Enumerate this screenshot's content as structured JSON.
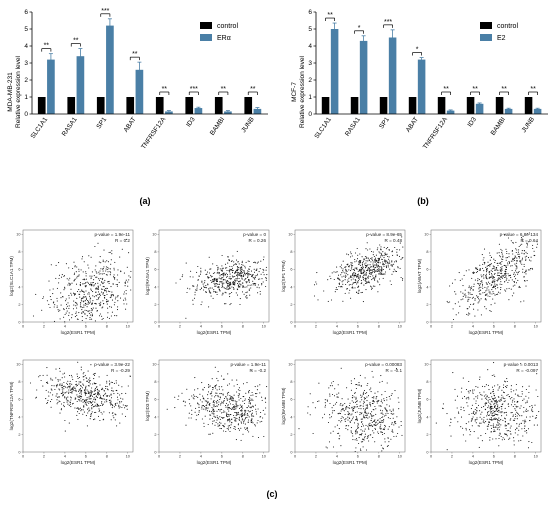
{
  "colors": {
    "control": "#000000",
    "treated": "#4a7fa6"
  },
  "panel_labels": {
    "a": "(a)",
    "b": "(b)",
    "c": "(c)"
  },
  "chart_data": [
    {
      "type": "bar",
      "panel": "a",
      "ylabel_line1": "MDA-MB-231",
      "ylabel_line2": "Relative expression level",
      "ylim": [
        0,
        6
      ],
      "yticks": [
        "0",
        "1",
        "2",
        "3",
        "4",
        "5",
        "6"
      ],
      "categories": [
        "SLC1A1",
        "RASA1",
        "SP1",
        "ABAT",
        "TNFRSF12A",
        "ID3",
        "BAMBI",
        "JUNB"
      ],
      "legend_position": "top-right",
      "series": [
        {
          "name": "control",
          "values": [
            1,
            1,
            1,
            1,
            1,
            1,
            1,
            1
          ],
          "errors": [
            0,
            0,
            0,
            0,
            0,
            0,
            0,
            0
          ]
        },
        {
          "name": "ERα",
          "values": [
            3.2,
            3.4,
            5.2,
            2.6,
            0.15,
            0.35,
            0.15,
            0.3
          ],
          "errors": [
            0.35,
            0.45,
            0.4,
            0.45,
            0.05,
            0.05,
            0.05,
            0.08
          ]
        }
      ],
      "significance": [
        "**",
        "**",
        "***",
        "**",
        "**",
        "***",
        "**",
        "**"
      ]
    },
    {
      "type": "bar",
      "panel": "b",
      "ylabel_line1": "MCF-7",
      "ylabel_line2": "Relative expression level",
      "ylim": [
        0,
        6
      ],
      "yticks": [
        "0",
        "1",
        "2",
        "3",
        "4",
        "5",
        "6"
      ],
      "categories": [
        "SLC1A1",
        "RASA1",
        "SP1",
        "ABAT",
        "TNFRSF12A",
        "ID3",
        "BAMBI",
        "JUNB"
      ],
      "legend_position": "top-right",
      "series": [
        {
          "name": "control",
          "values": [
            1,
            1,
            1,
            1,
            1,
            1,
            1,
            1
          ],
          "errors": [
            0,
            0,
            0,
            0,
            0,
            0,
            0,
            0
          ]
        },
        {
          "name": "E2",
          "values": [
            5.0,
            4.3,
            4.5,
            3.2,
            0.2,
            0.6,
            0.3,
            0.3
          ],
          "errors": [
            0.35,
            0.3,
            0.45,
            0.12,
            0.04,
            0.05,
            0.04,
            0.04
          ]
        }
      ],
      "significance": [
        "**",
        "*",
        "***",
        "*",
        "**",
        "**",
        "**",
        "**"
      ]
    },
    {
      "type": "scatter",
      "panel": "c",
      "xlabel": "log2(ESR1 TPM)",
      "xticks": [
        "0",
        "2",
        "4",
        "6",
        "8",
        "10"
      ],
      "yticks": [
        "0",
        "2",
        "4",
        "6",
        "8",
        "10"
      ],
      "subplots": [
        {
          "ylabel": "log2(SLC1A1 TPM)",
          "pvalue": "p-value = 1.9e-11",
          "r": "R = 0.2",
          "cx": 6.5,
          "cy": 3.5,
          "sx": 2.0,
          "sy": 2.0,
          "rho": 0.2
        },
        {
          "ylabel": "log2(RASA1 TPM)",
          "pvalue": "p-value = 0",
          "r": "R = 0.26",
          "cx": 7.0,
          "cy": 5.0,
          "sx": 1.8,
          "sy": 1.1,
          "rho": 0.3
        },
        {
          "ylabel": "log2(SP1 TPM)",
          "pvalue": "p-value = 8.9e-65",
          "r": "R = 0.48",
          "cx": 7.0,
          "cy": 6.0,
          "sx": 1.8,
          "sy": 1.3,
          "rho": 0.5
        },
        {
          "ylabel": "log2(ABAT TPM)",
          "pvalue": "p-value = 6.8e-134",
          "r": "R = 0.64",
          "cx": 6.5,
          "cy": 5.5,
          "sx": 2.0,
          "sy": 2.0,
          "rho": 0.65
        },
        {
          "ylabel": "log2(TNFRSF12A TPM)",
          "pvalue": "p-value = 3.9e-22",
          "r": "R = -0.29",
          "cx": 6.0,
          "cy": 6.5,
          "sx": 2.0,
          "sy": 1.3,
          "rho": -0.3
        },
        {
          "ylabel": "log2(ID3 TPM)",
          "pvalue": "p-value = 1.9e-11",
          "r": "R = -0.2",
          "cx": 6.5,
          "cy": 5.0,
          "sx": 2.0,
          "sy": 1.4,
          "rho": -0.2
        },
        {
          "ylabel": "log2(BAMBI TPM)",
          "pvalue": "p-value = 0.00083",
          "r": "R = -0.1",
          "cx": 6.5,
          "cy": 4.0,
          "sx": 2.0,
          "sy": 2.0,
          "rho": -0.1
        },
        {
          "ylabel": "log2(JUNB TPM)",
          "pvalue": "p-value = 0.0013",
          "r": "R = -0.097",
          "cx": 6.5,
          "cy": 4.5,
          "sx": 2.0,
          "sy": 1.8,
          "rho": -0.1
        }
      ]
    }
  ]
}
